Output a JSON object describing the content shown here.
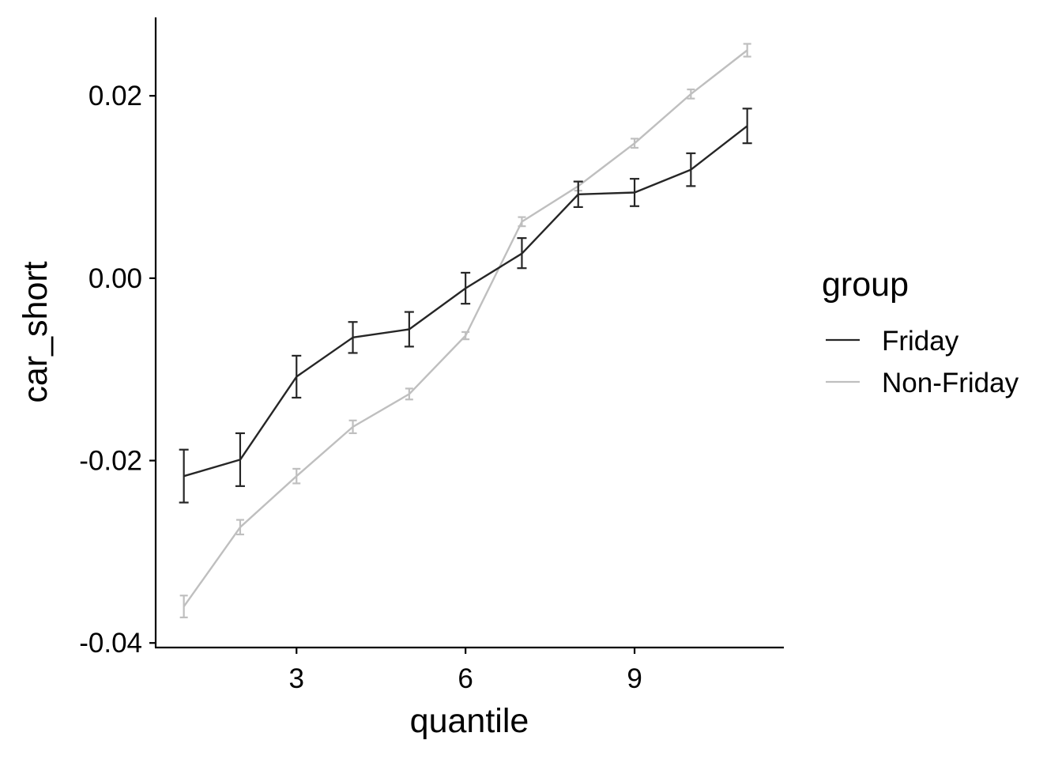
{
  "chart_data": {
    "type": "line",
    "xlabel": "quantile",
    "ylabel": "car_short",
    "xlim": [
      0.5,
      11.65
    ],
    "ylim": [
      -0.0405,
      0.0286
    ],
    "x_ticks": [
      3,
      6,
      9
    ],
    "x_tick_labels": [
      "3",
      "6",
      "9"
    ],
    "y_ticks": [
      -0.04,
      -0.02,
      0.0,
      0.02
    ],
    "y_tick_labels": [
      "-0.04",
      "-0.02",
      "0.00",
      "0.02"
    ],
    "grid": false,
    "legend": {
      "title": "group",
      "placement": "right",
      "entries": [
        "Friday",
        "Non-Friday"
      ]
    },
    "x": [
      1,
      2,
      3,
      4,
      5,
      6,
      7,
      8,
      9,
      10,
      11
    ],
    "series": [
      {
        "name": "Friday",
        "color": "#262626",
        "values": [
          -0.0217,
          -0.0199,
          -0.0108,
          -0.0065,
          -0.0056,
          -0.0011,
          0.0027,
          0.0092,
          0.0094,
          0.0119,
          0.0167
        ],
        "error_low": [
          -0.0246,
          -0.0228,
          -0.0131,
          -0.0082,
          -0.0075,
          -0.0028,
          0.0011,
          0.0078,
          0.0079,
          0.0101,
          0.0148
        ],
        "error_high": [
          -0.0188,
          -0.017,
          -0.0085,
          -0.0048,
          -0.0037,
          0.0006,
          0.0044,
          0.0106,
          0.0109,
          0.0137,
          0.0186
        ]
      },
      {
        "name": "Non-Friday",
        "color": "#bfbfbf",
        "values": [
          -0.036,
          -0.0273,
          -0.0217,
          -0.0163,
          -0.0127,
          -0.0063,
          0.0062,
          0.0101,
          0.0148,
          0.0202,
          0.025
        ],
        "error_low": [
          -0.0372,
          -0.0281,
          -0.0225,
          -0.017,
          -0.0133,
          -0.0067,
          0.0057,
          0.0096,
          0.0143,
          0.0197,
          0.0243
        ],
        "error_high": [
          -0.0348,
          -0.0265,
          -0.0209,
          -0.0156,
          -0.0121,
          -0.0059,
          0.0067,
          0.0106,
          0.0153,
          0.0207,
          0.0257
        ]
      }
    ]
  }
}
